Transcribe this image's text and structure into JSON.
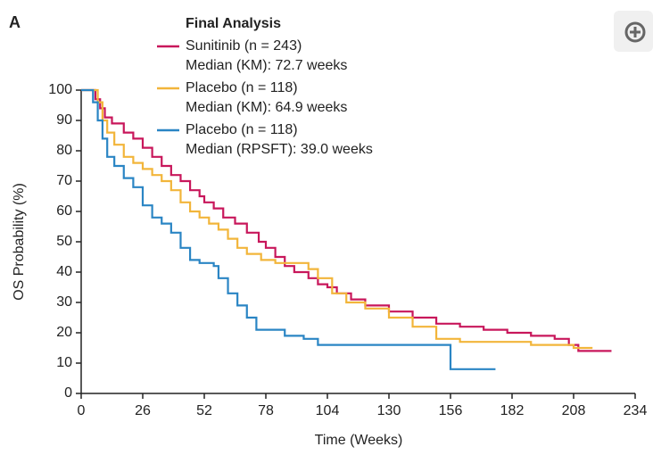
{
  "chart_data": {
    "type": "line",
    "panel_label": "A",
    "legend_title": "Final Analysis",
    "xlabel": "Time (Weeks)",
    "ylabel": "OS Probability (%)",
    "xlim": [
      0,
      234
    ],
    "xticks": [
      0,
      26,
      52,
      78,
      104,
      130,
      156,
      182,
      208,
      234
    ],
    "ylim": [
      0,
      100
    ],
    "yticks": [
      0,
      10,
      20,
      30,
      40,
      50,
      60,
      70,
      80,
      90,
      100
    ],
    "series": [
      {
        "name": "Sunitinib (n = 243)",
        "median_label": "Median (KM): 72.7 weeks",
        "color": "#c8175b",
        "x": [
          0,
          4,
          6,
          8,
          10,
          13,
          18,
          22,
          26,
          30,
          34,
          38,
          42,
          46,
          50,
          52,
          56,
          60,
          65,
          70,
          75,
          78,
          82,
          86,
          90,
          96,
          100,
          104,
          108,
          114,
          120,
          130,
          140,
          150,
          160,
          170,
          180,
          190,
          200,
          206,
          210,
          224
        ],
        "values": [
          100,
          100,
          97,
          94,
          91,
          89,
          86,
          84,
          81,
          78,
          75,
          72,
          70,
          67,
          65,
          63,
          61,
          58,
          56,
          53,
          50,
          48,
          45,
          42,
          40,
          38,
          36,
          35,
          33,
          31,
          29,
          27,
          25,
          23,
          22,
          21,
          20,
          19,
          18,
          16,
          14,
          14
        ]
      },
      {
        "name": "Placebo (n = 118)",
        "median_label": "Median (KM): 64.9 weeks",
        "color": "#f2b53a",
        "x": [
          0,
          5,
          7,
          9,
          11,
          14,
          18,
          22,
          26,
          30,
          34,
          38,
          42,
          46,
          50,
          54,
          58,
          62,
          66,
          70,
          76,
          82,
          90,
          96,
          100,
          106,
          112,
          120,
          130,
          140,
          150,
          160,
          180,
          190,
          200,
          208,
          216
        ],
        "values": [
          100,
          100,
          96,
          90,
          86,
          82,
          78,
          76,
          74,
          72,
          70,
          67,
          63,
          60,
          58,
          56,
          54,
          51,
          48,
          46,
          44,
          43,
          43,
          41,
          38,
          33,
          30,
          28,
          25,
          22,
          18,
          17,
          17,
          16,
          16,
          15,
          15
        ]
      },
      {
        "name": "Placebo (n = 118)",
        "median_label": "Median (RPSFT): 39.0 weeks",
        "color": "#2a85c4",
        "x": [
          0,
          3,
          5,
          7,
          9,
          11,
          14,
          18,
          22,
          26,
          30,
          34,
          38,
          42,
          46,
          50,
          56,
          58,
          62,
          66,
          70,
          74,
          80,
          86,
          94,
          100,
          156,
          156,
          175
        ],
        "values": [
          100,
          100,
          96,
          90,
          84,
          78,
          75,
          71,
          68,
          62,
          58,
          56,
          53,
          48,
          44,
          43,
          42,
          38,
          33,
          29,
          25,
          21,
          21,
          19,
          18,
          16,
          16,
          8,
          8
        ]
      }
    ]
  }
}
